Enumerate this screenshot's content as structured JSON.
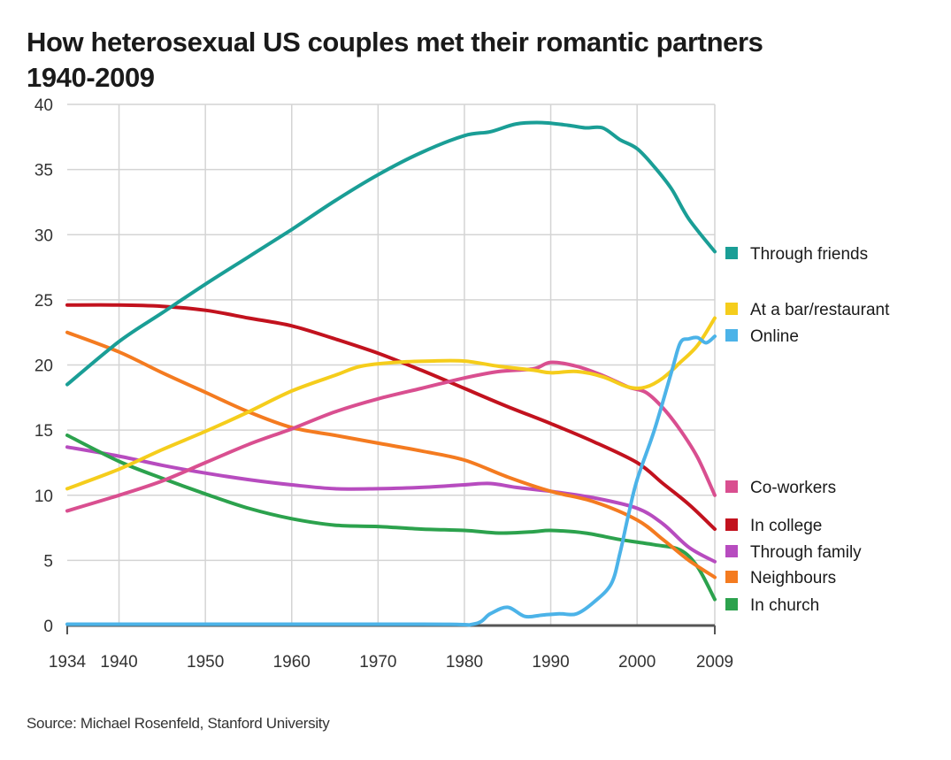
{
  "title_line1": "How heterosexual US couples met their romantic partners",
  "title_line2": "1940-2009",
  "source": "Source: Michael Rosenfeld, Stanford University",
  "chart_data": {
    "type": "line",
    "title": "How heterosexual US couples met their romantic partners 1940-2009",
    "xlabel": "",
    "ylabel": "",
    "xlim": [
      1934,
      2009
    ],
    "ylim": [
      0,
      40
    ],
    "x_ticks": [
      1934,
      1940,
      1950,
      1960,
      1970,
      1980,
      1990,
      2000,
      2009
    ],
    "x_tick_labels": [
      "1934",
      "1940",
      "1950",
      "1960",
      "1970",
      "1980",
      "1990",
      "2000",
      "2009"
    ],
    "y_ticks": [
      0,
      5,
      10,
      15,
      20,
      25,
      30,
      35,
      40
    ],
    "y_tick_labels": [
      "0",
      "5",
      "10",
      "15",
      "20",
      "25",
      "30",
      "35",
      "40"
    ],
    "grid": true,
    "legend_position": "right, labels aligned to line ends",
    "series": [
      {
        "name": "Through friends",
        "color": "#1a9e96",
        "points": [
          [
            1934,
            18.5
          ],
          [
            1940,
            21.8
          ],
          [
            1945,
            24.0
          ],
          [
            1950,
            26.2
          ],
          [
            1955,
            28.3
          ],
          [
            1960,
            30.4
          ],
          [
            1965,
            32.6
          ],
          [
            1970,
            34.6
          ],
          [
            1975,
            36.3
          ],
          [
            1980,
            37.6
          ],
          [
            1983,
            37.9
          ],
          [
            1986,
            38.5
          ],
          [
            1989,
            38.6
          ],
          [
            1992,
            38.4
          ],
          [
            1994,
            38.2
          ],
          [
            1996,
            38.2
          ],
          [
            1998,
            37.3
          ],
          [
            2000,
            36.6
          ],
          [
            2002,
            35.2
          ],
          [
            2004,
            33.5
          ],
          [
            2006,
            31.2
          ],
          [
            2009,
            28.7
          ]
        ]
      },
      {
        "name": "At a bar/restaurant",
        "color": "#f5cd1c",
        "points": [
          [
            1934,
            10.5
          ],
          [
            1940,
            12.0
          ],
          [
            1945,
            13.5
          ],
          [
            1950,
            14.9
          ],
          [
            1955,
            16.4
          ],
          [
            1960,
            18.0
          ],
          [
            1965,
            19.2
          ],
          [
            1968,
            19.9
          ],
          [
            1972,
            20.2
          ],
          [
            1976,
            20.3
          ],
          [
            1980,
            20.3
          ],
          [
            1984,
            19.9
          ],
          [
            1988,
            19.6
          ],
          [
            1990,
            19.4
          ],
          [
            1993,
            19.5
          ],
          [
            1996,
            19.1
          ],
          [
            1999,
            18.3
          ],
          [
            2001,
            18.3
          ],
          [
            2003,
            19.0
          ],
          [
            2005,
            20.2
          ],
          [
            2007,
            21.5
          ],
          [
            2009,
            23.6
          ]
        ]
      },
      {
        "name": "Online",
        "color": "#4cb3e8",
        "points": [
          [
            1934,
            0.1
          ],
          [
            1975,
            0.1
          ],
          [
            1981,
            0.1
          ],
          [
            1983,
            0.9
          ],
          [
            1985,
            1.4
          ],
          [
            1987,
            0.7
          ],
          [
            1989,
            0.8
          ],
          [
            1991,
            0.9
          ],
          [
            1993,
            0.9
          ],
          [
            1995,
            1.8
          ],
          [
            1997,
            3.2
          ],
          [
            1998,
            5.5
          ],
          [
            1999,
            8.5
          ],
          [
            2000,
            11.2
          ],
          [
            2002,
            15.0
          ],
          [
            2004,
            19.5
          ],
          [
            2005,
            21.7
          ],
          [
            2006,
            22.0
          ],
          [
            2007,
            22.1
          ],
          [
            2008,
            21.7
          ],
          [
            2009,
            22.2
          ]
        ]
      },
      {
        "name": "Co-workers",
        "color": "#d94f90",
        "points": [
          [
            1934,
            8.8
          ],
          [
            1940,
            10.0
          ],
          [
            1945,
            11.1
          ],
          [
            1950,
            12.5
          ],
          [
            1955,
            13.9
          ],
          [
            1960,
            15.1
          ],
          [
            1965,
            16.4
          ],
          [
            1970,
            17.4
          ],
          [
            1975,
            18.2
          ],
          [
            1980,
            19.0
          ],
          [
            1984,
            19.5
          ],
          [
            1988,
            19.7
          ],
          [
            1990,
            20.2
          ],
          [
            1993,
            19.9
          ],
          [
            1996,
            19.2
          ],
          [
            1999,
            18.3
          ],
          [
            2001,
            17.9
          ],
          [
            2003,
            16.7
          ],
          [
            2005,
            15.0
          ],
          [
            2007,
            12.9
          ],
          [
            2009,
            10.0
          ]
        ]
      },
      {
        "name": "In college",
        "color": "#c2121e",
        "points": [
          [
            1934,
            24.6
          ],
          [
            1940,
            24.6
          ],
          [
            1945,
            24.5
          ],
          [
            1950,
            24.2
          ],
          [
            1955,
            23.6
          ],
          [
            1960,
            23.0
          ],
          [
            1965,
            22.0
          ],
          [
            1970,
            20.9
          ],
          [
            1975,
            19.6
          ],
          [
            1980,
            18.2
          ],
          [
            1985,
            16.8
          ],
          [
            1990,
            15.5
          ],
          [
            1995,
            14.1
          ],
          [
            2000,
            12.5
          ],
          [
            2003,
            10.9
          ],
          [
            2006,
            9.3
          ],
          [
            2009,
            7.4
          ]
        ]
      },
      {
        "name": "Through family",
        "color": "#b74cbf",
        "points": [
          [
            1934,
            13.7
          ],
          [
            1940,
            13.0
          ],
          [
            1945,
            12.3
          ],
          [
            1950,
            11.7
          ],
          [
            1955,
            11.2
          ],
          [
            1960,
            10.8
          ],
          [
            1965,
            10.5
          ],
          [
            1970,
            10.5
          ],
          [
            1975,
            10.6
          ],
          [
            1980,
            10.8
          ],
          [
            1983,
            10.9
          ],
          [
            1986,
            10.6
          ],
          [
            1990,
            10.3
          ],
          [
            1995,
            9.8
          ],
          [
            2000,
            9.0
          ],
          [
            2003,
            7.8
          ],
          [
            2006,
            6.0
          ],
          [
            2009,
            4.9
          ]
        ]
      },
      {
        "name": "Neighbours",
        "color": "#f47b20",
        "points": [
          [
            1934,
            22.5
          ],
          [
            1940,
            21.0
          ],
          [
            1945,
            19.4
          ],
          [
            1950,
            17.9
          ],
          [
            1955,
            16.4
          ],
          [
            1960,
            15.2
          ],
          [
            1965,
            14.6
          ],
          [
            1970,
            14.0
          ],
          [
            1975,
            13.4
          ],
          [
            1980,
            12.7
          ],
          [
            1985,
            11.4
          ],
          [
            1990,
            10.3
          ],
          [
            1995,
            9.5
          ],
          [
            2000,
            8.1
          ],
          [
            2003,
            6.6
          ],
          [
            2006,
            5.0
          ],
          [
            2009,
            3.7
          ]
        ]
      },
      {
        "name": "In church",
        "color": "#2ca24d",
        "points": [
          [
            1934,
            14.6
          ],
          [
            1940,
            12.6
          ],
          [
            1945,
            11.3
          ],
          [
            1950,
            10.1
          ],
          [
            1955,
            9.0
          ],
          [
            1960,
            8.2
          ],
          [
            1965,
            7.7
          ],
          [
            1970,
            7.6
          ],
          [
            1975,
            7.4
          ],
          [
            1980,
            7.3
          ],
          [
            1984,
            7.1
          ],
          [
            1988,
            7.2
          ],
          [
            1990,
            7.3
          ],
          [
            1994,
            7.1
          ],
          [
            1998,
            6.6
          ],
          [
            2002,
            6.2
          ],
          [
            2005,
            5.8
          ],
          [
            2007,
            4.5
          ],
          [
            2009,
            2.0
          ]
        ]
      }
    ],
    "legend": [
      {
        "label": "Through friends",
        "color": "#1a9e96"
      },
      {
        "label": "At a bar/restaurant",
        "color": "#f5cd1c"
      },
      {
        "label": "Online",
        "color": "#4cb3e8"
      },
      {
        "label": "Co-workers",
        "color": "#d94f90"
      },
      {
        "label": "In college",
        "color": "#c2121e"
      },
      {
        "label": "Through family",
        "color": "#b74cbf"
      },
      {
        "label": "Neighbours",
        "color": "#f47b20"
      },
      {
        "label": "In church",
        "color": "#2ca24d"
      }
    ]
  }
}
